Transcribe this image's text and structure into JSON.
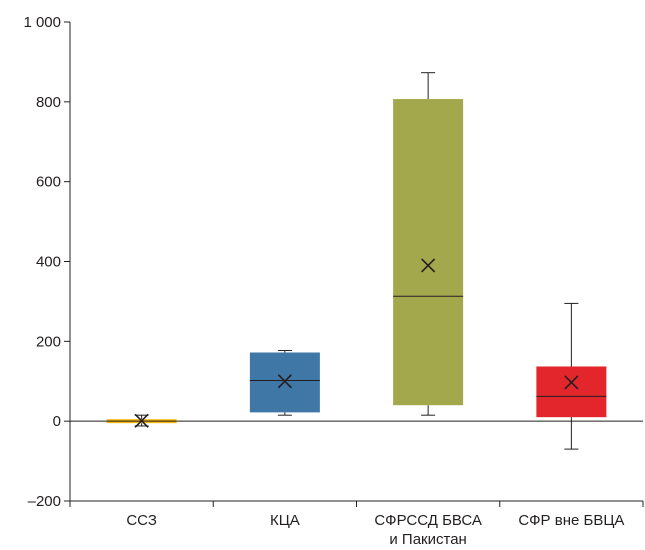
{
  "chart_data": {
    "type": "box",
    "title": "",
    "xlabel": "",
    "ylabel": "",
    "ylim": [
      -200,
      1000
    ],
    "yticks": [
      {
        "value": -200,
        "label": "–200"
      },
      {
        "value": 0,
        "label": "0"
      },
      {
        "value": 200,
        "label": "200"
      },
      {
        "value": 400,
        "label": "400"
      },
      {
        "value": 600,
        "label": "600"
      },
      {
        "value": 800,
        "label": "800"
      },
      {
        "value": 1000,
        "label": "1 000"
      }
    ],
    "categories": [
      {
        "label_lines": [
          "ССЗ"
        ],
        "min": -12,
        "q1": -5,
        "median": 0,
        "q3": 5,
        "max": 15,
        "mean": 1,
        "color": "#f5b80f"
      },
      {
        "label_lines": [
          "КЦА"
        ],
        "min": 15,
        "q1": 22,
        "median": 102,
        "q3": 172,
        "max": 177,
        "mean": 100,
        "color": "#3f77a7"
      },
      {
        "label_lines": [
          "СФРССД БВСА",
          "и Пакистан"
        ],
        "min": 15,
        "q1": 40,
        "median": 313,
        "q3": 807,
        "max": 873,
        "mean": 390,
        "color": "#a4a84c"
      },
      {
        "label_lines": [
          "СФР вне БВЦА"
        ],
        "min": -70,
        "q1": 10,
        "median": 62,
        "q3": 137,
        "max": 295,
        "mean": 97,
        "color": "#e3262b"
      }
    ],
    "grid": false,
    "legend": "none"
  }
}
